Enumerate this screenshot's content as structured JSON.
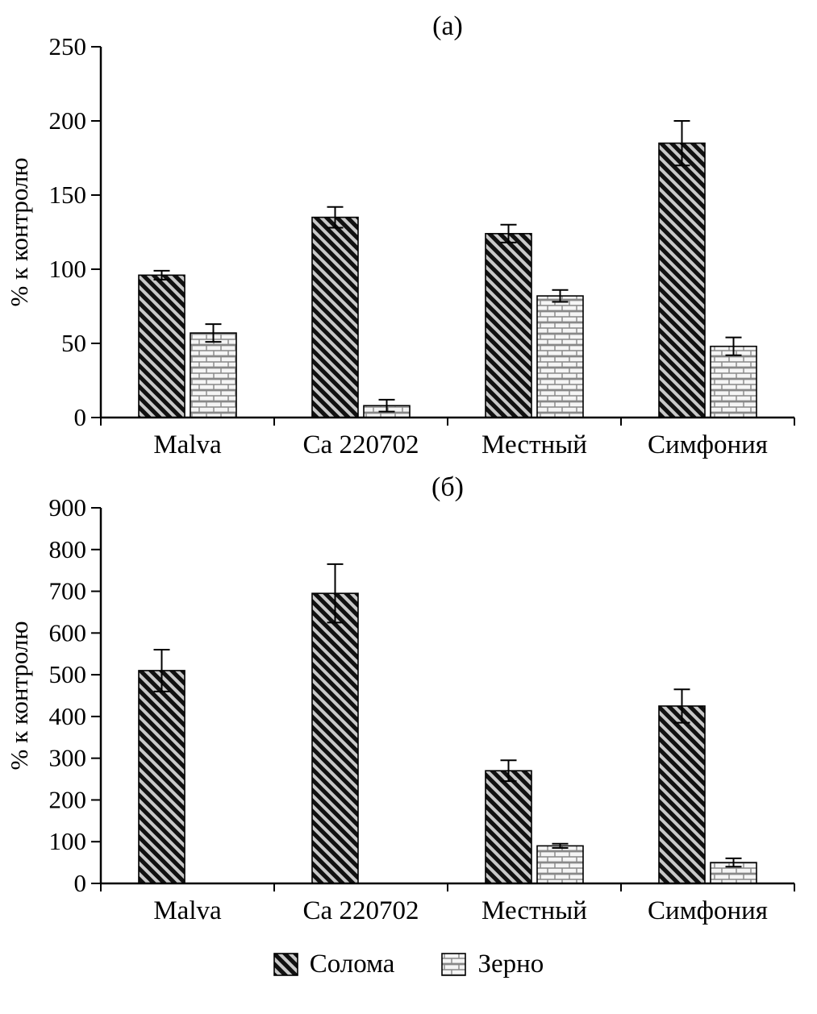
{
  "chart_data": [
    {
      "type": "bar",
      "title": "(а)",
      "ylabel": "% к контролю",
      "ylim": [
        0,
        250
      ],
      "ytick_step": 50,
      "grid": false,
      "categories": [
        "Malva",
        "Ca 220702",
        "Местный",
        "Симфония"
      ],
      "series": [
        {
          "name": "Солома",
          "pattern": "diagonal",
          "values": [
            96,
            135,
            124,
            185
          ],
          "errors": [
            3,
            7,
            6,
            15
          ]
        },
        {
          "name": "Зерно",
          "pattern": "brick",
          "values": [
            57,
            8,
            82,
            48
          ],
          "errors": [
            6,
            4,
            4,
            6
          ]
        }
      ]
    },
    {
      "type": "bar",
      "title": "(б)",
      "ylabel": "% к контролю",
      "ylim": [
        0,
        900
      ],
      "ytick_step": 100,
      "grid": false,
      "categories": [
        "Malva",
        "Ca 220702",
        "Местный",
        "Симфония"
      ],
      "series": [
        {
          "name": "Солома",
          "pattern": "diagonal",
          "values": [
            510,
            695,
            270,
            425
          ],
          "errors": [
            50,
            70,
            25,
            40
          ]
        },
        {
          "name": "Зерно",
          "pattern": "brick",
          "values": [
            0,
            0,
            90,
            50
          ],
          "errors": [
            0,
            0,
            5,
            10
          ]
        }
      ]
    }
  ],
  "legend": {
    "position": "bottom-center",
    "items": [
      {
        "label": "Солома",
        "pattern": "diagonal"
      },
      {
        "label": "Зерно",
        "pattern": "brick"
      }
    ]
  },
  "colors": {
    "axis": "#000000",
    "text": "#000000",
    "hatch_background": "#c9c9c9",
    "hatch_stripe": "#111111",
    "brick_background": "#f5f5f5",
    "brick_line": "#888888"
  }
}
